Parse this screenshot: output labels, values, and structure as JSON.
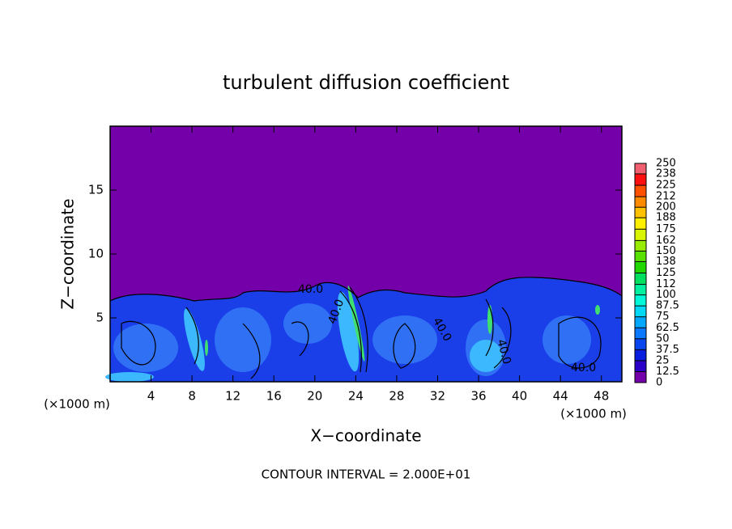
{
  "chart_data": {
    "type": "contour",
    "title": "turbulent diffusion coefficient",
    "xlabel": "X−coordinate",
    "ylabel": "Z−coordinate",
    "x_unit": "(×1000 m)",
    "note": "CONTOUR INTERVAL = 2.000E+01",
    "xlim": [
      0,
      50
    ],
    "xticks": [
      4,
      8,
      12,
      16,
      20,
      24,
      28,
      32,
      36,
      40,
      44,
      48
    ],
    "ylim": [
      0,
      20
    ],
    "yticks": [
      5,
      10,
      15
    ],
    "contour_labels": [
      "40.0",
      "40.0",
      "40.0",
      "40.0",
      "40.0"
    ],
    "colorbar": {
      "ticks": [
        0,
        12.5,
        25,
        37.5,
        50,
        62.5,
        75,
        87.5,
        100,
        112,
        125,
        138,
        150,
        162,
        175,
        188,
        200,
        212,
        225,
        238,
        250
      ],
      "colors": [
        "#7300a8",
        "#2a00c8",
        "#0a1ee0",
        "#0a46f0",
        "#0a78ff",
        "#00a8ff",
        "#00d8f8",
        "#00f8d8",
        "#00f0a0",
        "#00e060",
        "#20d800",
        "#58e000",
        "#98ec00",
        "#d8f400",
        "#fff000",
        "#ffc000",
        "#ff8a00",
        "#ff5000",
        "#ff1010",
        "#f06070"
      ]
    }
  }
}
